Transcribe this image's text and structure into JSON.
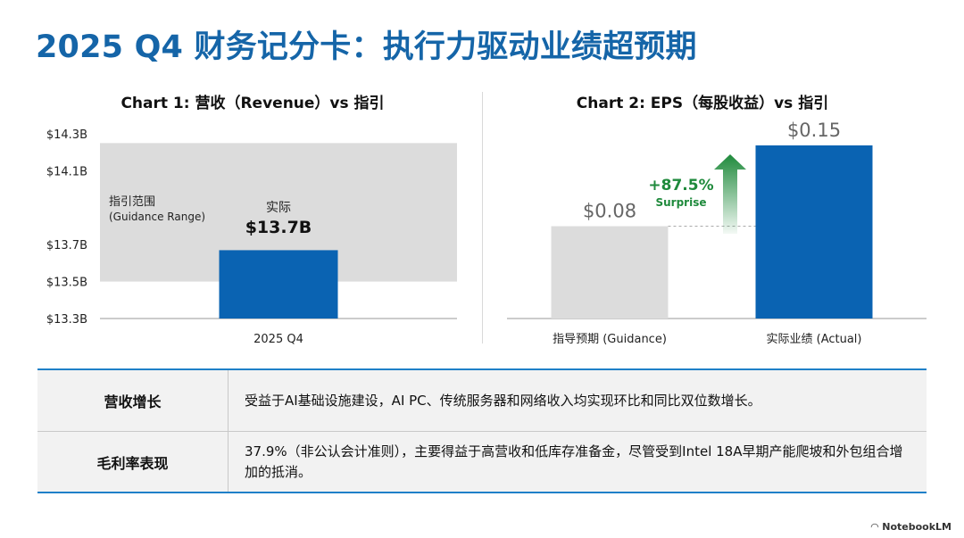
{
  "title": "2025 Q4 财务记分卡：执行力驱动业绩超预期",
  "chart_data": [
    {
      "type": "bar",
      "title": "Chart 1: 营收（Revenue）vs 指引",
      "categories": [
        "2025 Q4"
      ],
      "values": [
        13.67
      ],
      "value_unit": "billion USD",
      "ylim": [
        13.3,
        14.3
      ],
      "yticks": [
        "$13.3B",
        "$13.5B",
        "$13.7B",
        "$14.1B",
        "$14.3B"
      ],
      "ytick_values": [
        13.3,
        13.5,
        13.7,
        14.1,
        14.3
      ],
      "guidance_range": [
        13.5,
        14.25
      ],
      "guidance_label_line1": "指引范围",
      "guidance_label_line2": "(Guidance Range)",
      "actual_label_line1": "实际",
      "actual_label_line2": "$13.7B",
      "bar_color": "#0a63b2",
      "range_color": "#dcdcdc"
    },
    {
      "type": "bar",
      "title": "Chart 2: EPS（每股收益）vs 指引",
      "categories": [
        "指导预期 (Guidance)",
        "实际业绩 (Actual)"
      ],
      "values": [
        0.08,
        0.15
      ],
      "value_labels": [
        "$0.08",
        "$0.15"
      ],
      "ylim": [
        0,
        0.16
      ],
      "surprise_value": "+87.5%",
      "surprise_label": "Surprise",
      "colors": [
        "#dcdcdc",
        "#0a63b2"
      ],
      "accent": "#1f8a3c"
    }
  ],
  "table": {
    "rows": [
      {
        "header": "营收增长",
        "text": "受益于AI基础设施建设，AI PC、传统服务器和网络收入均实现环比和同比双位数增长。"
      },
      {
        "header": "毛利率表现",
        "text": "37.9%（非公认会计准则），主要得益于高营收和低库存准备金，尽管受到Intel 18A早期产能爬坡和外包组合增加的抵消。"
      }
    ]
  },
  "footer": {
    "brand": "NotebookLM"
  }
}
